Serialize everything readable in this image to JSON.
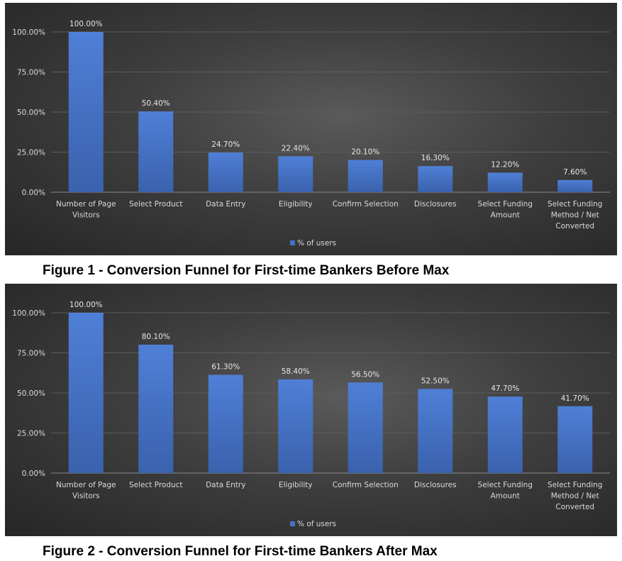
{
  "chart_data": [
    {
      "type": "bar",
      "caption": "Figure 1 - Conversion Funnel for First-time Bankers Before Max",
      "categories": [
        [
          "Number of Page",
          "Visitors"
        ],
        [
          "Select Product"
        ],
        [
          "Data Entry"
        ],
        [
          "Eligibility"
        ],
        [
          "Confirm Selection"
        ],
        [
          "Disclosures"
        ],
        [
          "Select Funding",
          "Amount"
        ],
        [
          "Select Funding",
          "Method / Net",
          "Converted"
        ]
      ],
      "series": [
        {
          "name": "% of users",
          "values": [
            100.0,
            50.4,
            24.7,
            22.4,
            20.1,
            16.3,
            12.2,
            7.6
          ]
        }
      ],
      "data_labels": [
        "100.00%",
        "50.40%",
        "24.70%",
        "22.40%",
        "20.10%",
        "16.30%",
        "12.20%",
        "7.60%"
      ],
      "yticks": [
        "0.00%",
        "25.00%",
        "50.00%",
        "75.00%",
        "100.00%"
      ],
      "ylim": [
        0,
        100
      ],
      "grid": true,
      "legend": "bottom",
      "bar_color": "#4472c4"
    },
    {
      "type": "bar",
      "caption": "Figure 2 - Conversion Funnel for First-time Bankers After Max",
      "categories": [
        [
          "Number of Page",
          "Visitors"
        ],
        [
          "Select Product"
        ],
        [
          "Data Entry"
        ],
        [
          "Eligibility"
        ],
        [
          "Confirm Selection"
        ],
        [
          "Disclosures"
        ],
        [
          "Select Funding",
          "Amount"
        ],
        [
          "Select Funding",
          "Method / Net",
          "Converted"
        ]
      ],
      "series": [
        {
          "name": "% of users",
          "values": [
            100.0,
            80.1,
            61.3,
            58.4,
            56.5,
            52.5,
            47.7,
            41.7
          ]
        }
      ],
      "data_labels": [
        "100.00%",
        "80.10%",
        "61.30%",
        "58.40%",
        "56.50%",
        "52.50%",
        "47.70%",
        "41.70%"
      ],
      "yticks": [
        "0.00%",
        "25.00%",
        "50.00%",
        "75.00%",
        "100.00%"
      ],
      "ylim": [
        0,
        100
      ],
      "grid": true,
      "legend": "bottom",
      "bar_color": "#4472c4"
    }
  ]
}
